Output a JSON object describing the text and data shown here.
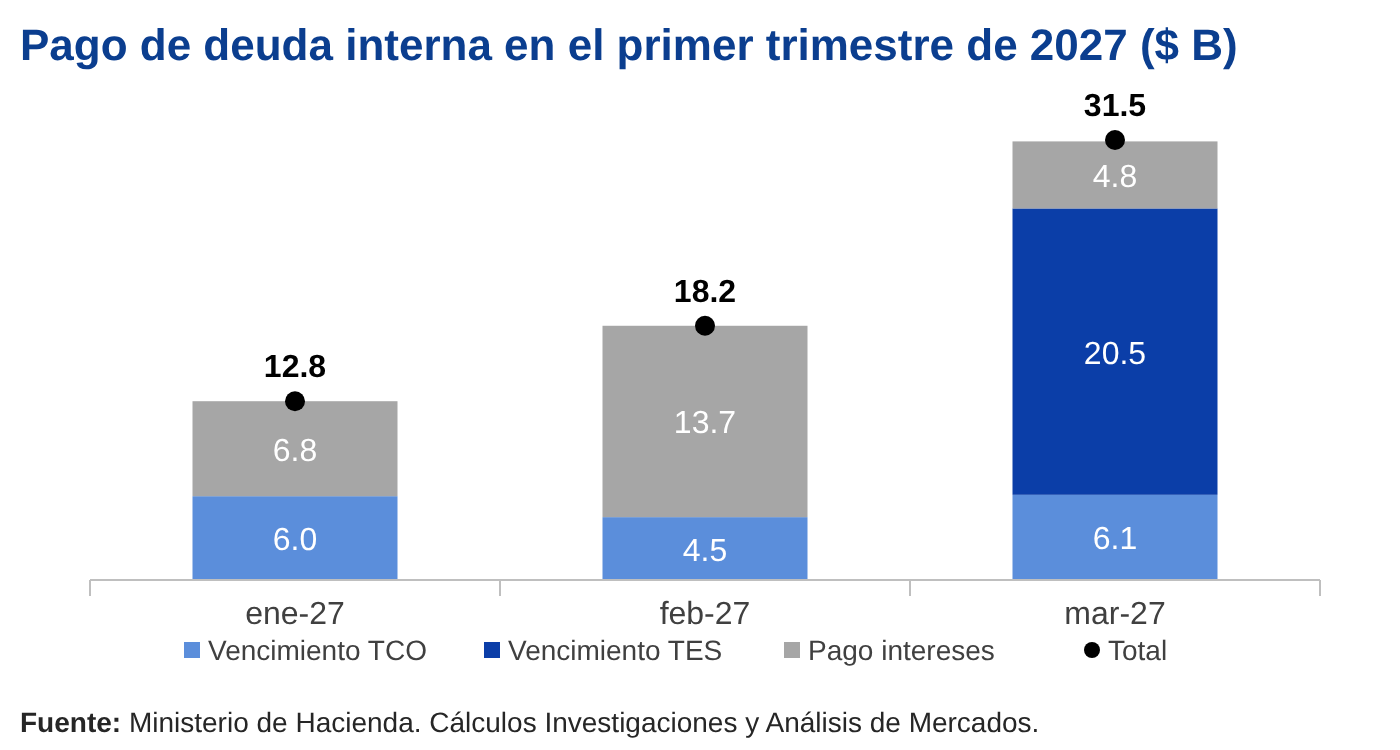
{
  "chart_data": {
    "type": "bar",
    "stacked": true,
    "title": "Pago de deuda interna en el primer trimestre de 2027 ($ B)",
    "categories": [
      "ene-27",
      "feb-27",
      "mar-27"
    ],
    "series": [
      {
        "name": "Vencimiento TCO",
        "color": "#5b8edb",
        "values": [
          6.0,
          4.5,
          6.1
        ],
        "value_labels": [
          "6.0",
          "4.5",
          "6.1"
        ]
      },
      {
        "name": "Vencimiento TES",
        "color": "#0b3ea8",
        "values": [
          null,
          null,
          20.5
        ],
        "value_labels": [
          null,
          null,
          "20.5"
        ]
      },
      {
        "name": "Pago intereses",
        "color": "#a6a6a6",
        "values": [
          6.8,
          13.7,
          4.8
        ],
        "value_labels": [
          "6.8",
          "13.7",
          "4.8"
        ]
      },
      {
        "name": "Total",
        "type": "scatter",
        "color": "#000000",
        "x": [
          "ene-27",
          "feb-27",
          "mar-27"
        ],
        "values": [
          12.8,
          18.2,
          31.5
        ],
        "value_labels": [
          "12.8",
          "18.2",
          "31.5"
        ]
      }
    ],
    "legend": "bottom",
    "marker": "circle",
    "annotations": [
      "Fuente: Ministerio de Hacienda. Cálculos Investigaciones y Análisis de Mercados."
    ]
  }
}
